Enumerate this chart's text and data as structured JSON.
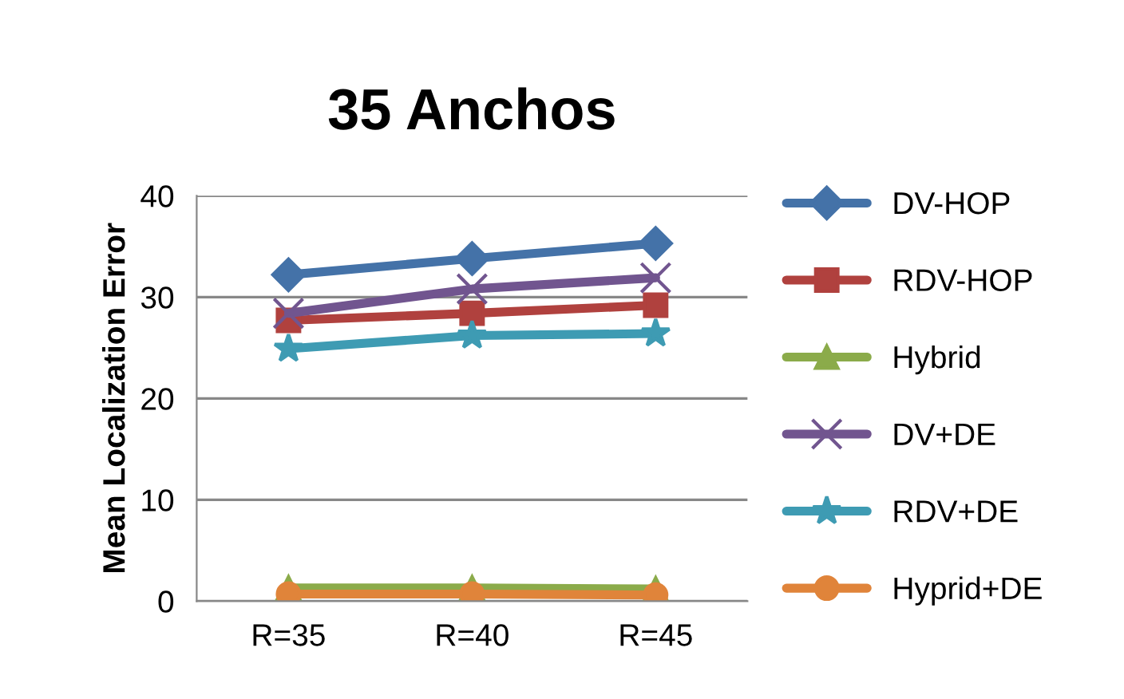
{
  "chart_data": {
    "type": "line",
    "title": "35 Anchos",
    "ylabel": "Mean Localization Error",
    "categories": [
      "R=35",
      "R=40",
      "R=45"
    ],
    "series": [
      {
        "name": "DV-HOP",
        "color": "#4472a8",
        "marker": "diamond",
        "values": [
          32.2,
          33.8,
          35.3
        ]
      },
      {
        "name": "RDV-HOP",
        "color": "#b0413e",
        "marker": "square",
        "values": [
          27.7,
          28.4,
          29.2
        ]
      },
      {
        "name": "Hybrid",
        "color": "#8bab4a",
        "marker": "triangle",
        "values": [
          1.3,
          1.3,
          1.2
        ]
      },
      {
        "name": "DV+DE",
        "color": "#71558f",
        "marker": "cross",
        "values": [
          28.4,
          30.8,
          31.9
        ]
      },
      {
        "name": "RDV+DE",
        "color": "#3e9bb3",
        "marker": "star",
        "values": [
          24.9,
          26.2,
          26.4
        ]
      },
      {
        "name": "Hyprid+DE",
        "color": "#e0843a",
        "marker": "circle",
        "values": [
          0.7,
          0.7,
          0.6
        ]
      }
    ],
    "ylim": [
      0,
      40
    ],
    "yticks": [
      0,
      10,
      20,
      30,
      40
    ],
    "grid": "y",
    "legend": "right",
    "line_style": "solid"
  }
}
